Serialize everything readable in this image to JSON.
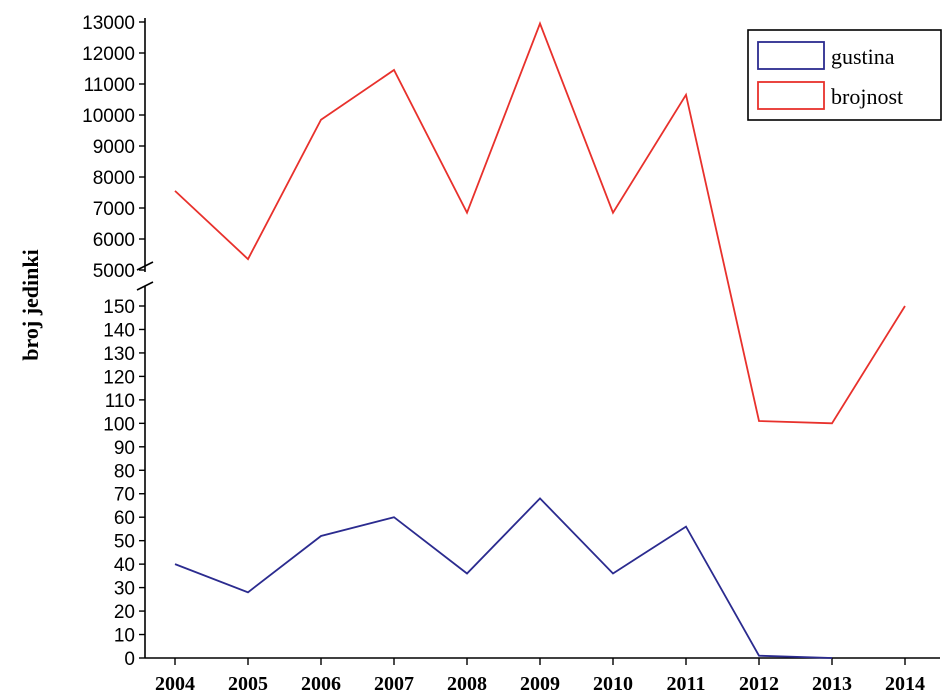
{
  "chart_data": {
    "type": "line",
    "ylabel": "broj jedinki",
    "xlabel": "",
    "categories": [
      "2004",
      "2005",
      "2006",
      "2007",
      "2008",
      "2009",
      "2010",
      "2011",
      "2012",
      "2013",
      "2014"
    ],
    "axis_break": true,
    "upper_segment": {
      "ylim": [
        5000,
        13000
      ],
      "ticks": [
        5000,
        6000,
        7000,
        8000,
        9000,
        10000,
        11000,
        12000,
        13000
      ]
    },
    "lower_segment": {
      "ylim": [
        0,
        155
      ],
      "ticks": [
        0,
        10,
        20,
        30,
        40,
        50,
        60,
        70,
        80,
        90,
        100,
        110,
        120,
        130,
        140,
        150
      ]
    },
    "series": [
      {
        "name": "gustina",
        "color": "#2b2b8f",
        "values": [
          40,
          28,
          52,
          60,
          36,
          68,
          36,
          56,
          1,
          0,
          null
        ]
      },
      {
        "name": "brojnost",
        "color": "#e8312c",
        "values": [
          7550,
          5350,
          9850,
          11450,
          6850,
          12950,
          6850,
          10650,
          101,
          100,
          150
        ]
      }
    ],
    "legend_position": "top-right",
    "grid": false
  }
}
